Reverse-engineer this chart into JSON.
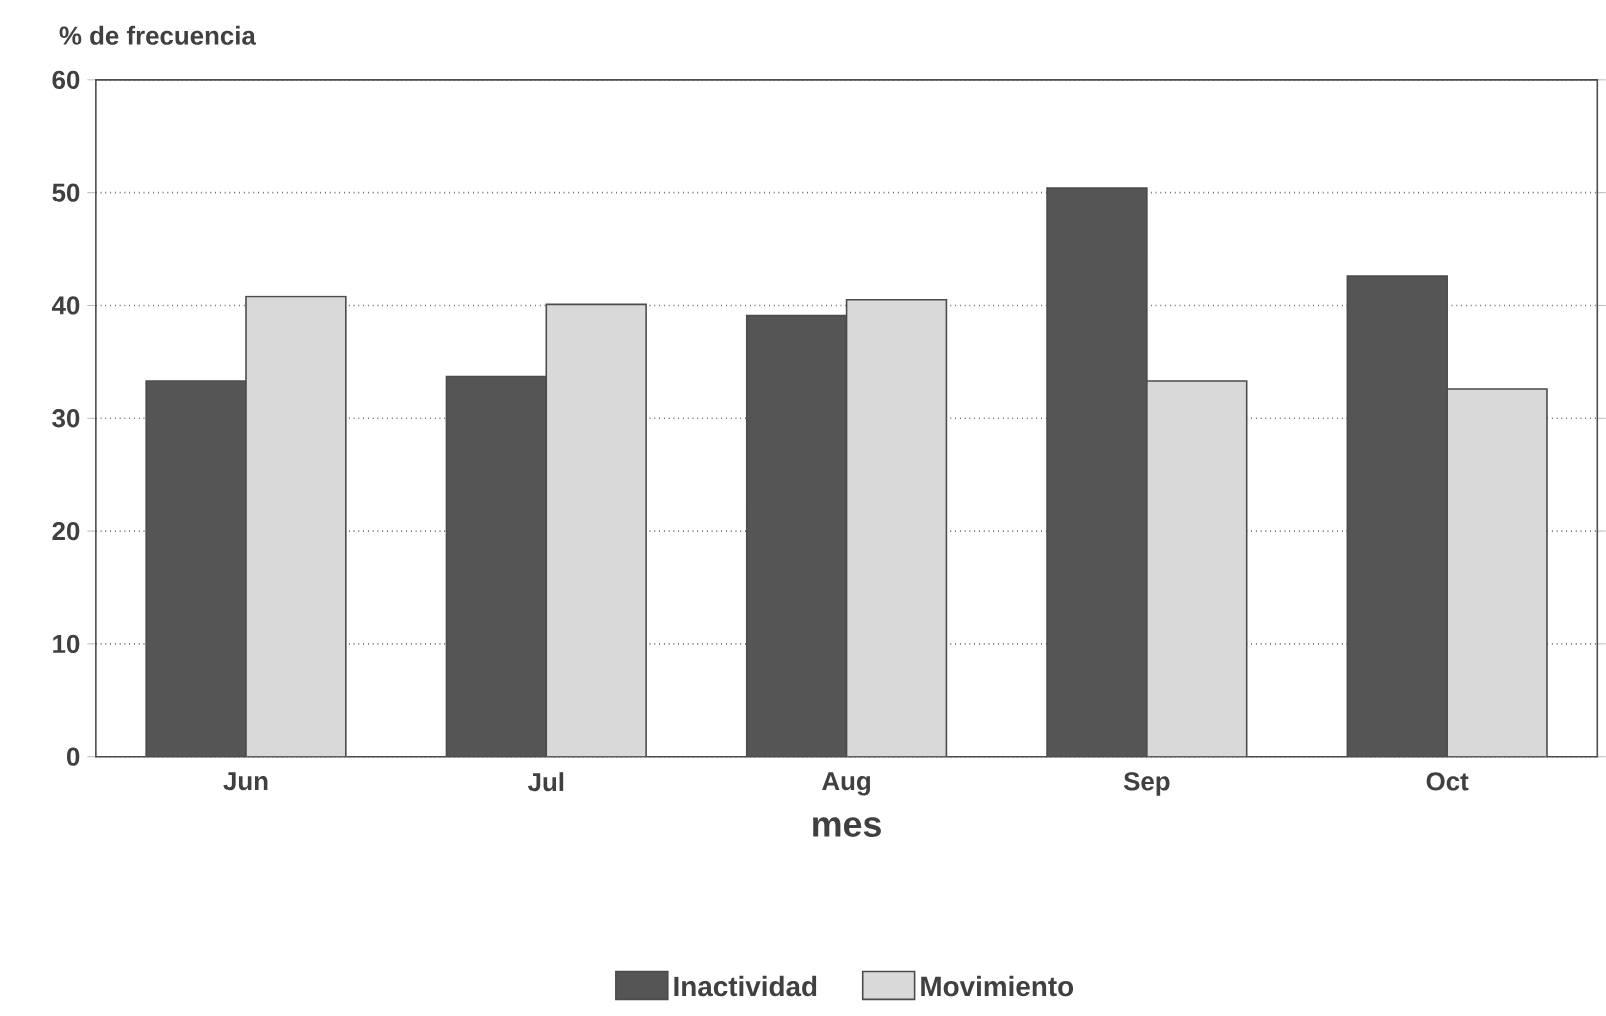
{
  "chart_data": {
    "type": "bar",
    "ylabel": "% de frecuencia",
    "xlabel": "mes",
    "categories": [
      "Jun",
      "Jul",
      "Aug",
      "Sep",
      "Oct"
    ],
    "series": [
      {
        "name": "Inactividad",
        "color": "#555555",
        "values": [
          33.3,
          33.7,
          39.1,
          50.4,
          42.6
        ]
      },
      {
        "name": "Movimiento",
        "color": "#d9d9d9",
        "values": [
          40.8,
          40.1,
          40.5,
          33.3,
          32.6
        ]
      }
    ],
    "ylim": [
      0,
      60
    ],
    "yticks": [
      0,
      10,
      20,
      30,
      40,
      50,
      60
    ],
    "grid": "y",
    "legend": "bottom"
  }
}
